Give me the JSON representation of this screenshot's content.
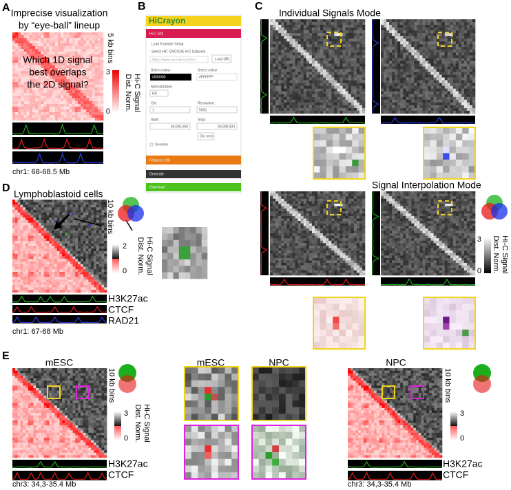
{
  "a": {
    "letter": "A",
    "title_lines": [
      "Imprecise visualization",
      "by “eye-ball” lineup"
    ],
    "question_lines": [
      "Which 1D signal",
      "best overlaps",
      "the 2D signal?"
    ],
    "bins": "5 kb bins",
    "cbar_max": "3",
    "cbar_min": "0",
    "cbar_label_lines": [
      "Dist. Norm.",
      "Hi-C Signal"
    ],
    "region": "chr1: 68-68.5 Mb"
  },
  "b": {
    "letter": "B",
    "app": "HiCrayon",
    "hic_tab": "Hi-C (20)",
    "load_example": "Load Example Setup",
    "select_hic": "Select HiC",
    "encode": "ENCODE HiC Datasets",
    "url_placeholder": "https://www.encode.com/hic/...",
    "load_url": "Load URL",
    "select_colour_1": "Select colour",
    "colour_1": "#000000",
    "select_colour_2": "Select colour",
    "colour_2": "#FFFFFF",
    "normalization": "Normalization",
    "norm_value": "KR",
    "chr": "Chr:",
    "chr_value": "1",
    "resolution": "Resolution:",
    "resolution_value": "5000",
    "start": "Start:",
    "start_value": "60,000,000",
    "stop": "Stop:",
    "stop_value": "60,000,000",
    "chr_next": "Chr next",
    "genome": "Genome",
    "features_tab": "Features (10)",
    "generate": "Generate",
    "download": "Download"
  },
  "c": {
    "letter": "C",
    "mode_individual": "Individual Signals Mode",
    "mode_interpolation": "Signal Interpolation Mode",
    "cbar_max": "3",
    "cbar_min": "0",
    "cbar_label_lines": [
      "Dist. Norm.",
      "Hi-C Signal"
    ]
  },
  "d": {
    "letter": "D",
    "title": "Lymphoblastoid cells",
    "bins": "10 kb bins",
    "cbar_max": "2",
    "cbar_min": "0",
    "cbar_label_lines": [
      "Dist. Norm.",
      "Hi-C Signal"
    ],
    "tracks": [
      "H3K27ac",
      "CTCF",
      "RAD21"
    ],
    "region": "chr1: 67-68 Mb"
  },
  "e": {
    "letter": "E",
    "left_title": "mESC",
    "left_bins": "10 kb bins",
    "left_cbar_max": "3",
    "left_cbar_min": "0",
    "left_cbar_label_lines": [
      "Dist. Norm.",
      "Hi-C Signal"
    ],
    "left_tracks": [
      "H3K27ac",
      "CTCF"
    ],
    "left_region": "chr3: 34,3-35.4 Mb",
    "zoom_titles": [
      "mESC",
      "NPC"
    ],
    "right_title": "NPC",
    "right_bins": "10 kb bins",
    "right_cbar_max": "3",
    "right_cbar_min": "0",
    "right_tracks": [
      "H3K27ac",
      "CTCF"
    ],
    "right_region": "chr3: 34,3-35.4 Mb"
  }
}
